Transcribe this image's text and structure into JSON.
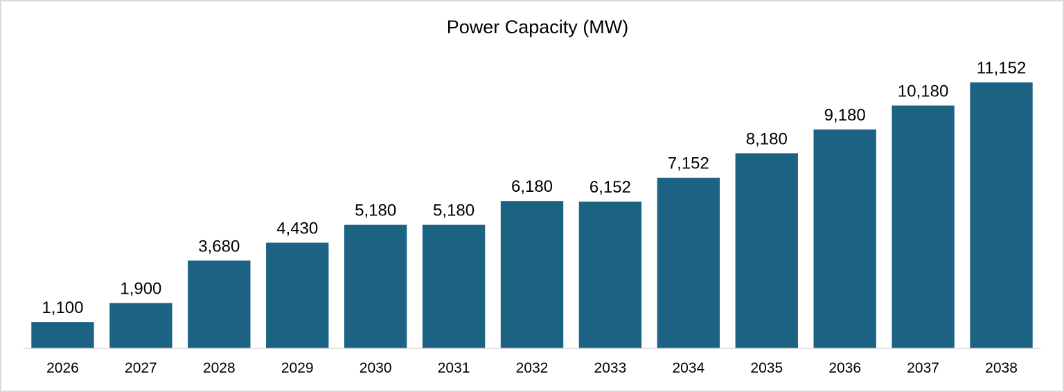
{
  "chart_data": {
    "type": "bar",
    "title": "Power Capacity (MW)",
    "xlabel": "",
    "ylabel": "",
    "categories": [
      "2026",
      "2027",
      "2028",
      "2029",
      "2030",
      "2031",
      "2032",
      "2033",
      "2034",
      "2035",
      "2036",
      "2037",
      "2038"
    ],
    "values": [
      1100,
      1900,
      3680,
      4430,
      5180,
      5180,
      6180,
      6152,
      7152,
      8180,
      9180,
      10180,
      11152
    ],
    "value_labels": [
      "1,100",
      "1,900",
      "3,680",
      "4,430",
      "5,180",
      "5,180",
      "6,180",
      "6,152",
      "7,152",
      "8,180",
      "9,180",
      "10,180",
      "11,152"
    ],
    "ylim": [
      0,
      11152
    ],
    "grid": false,
    "legend": "none",
    "bar_color": "#1b6283",
    "axis_color": "#d9d9d9"
  }
}
